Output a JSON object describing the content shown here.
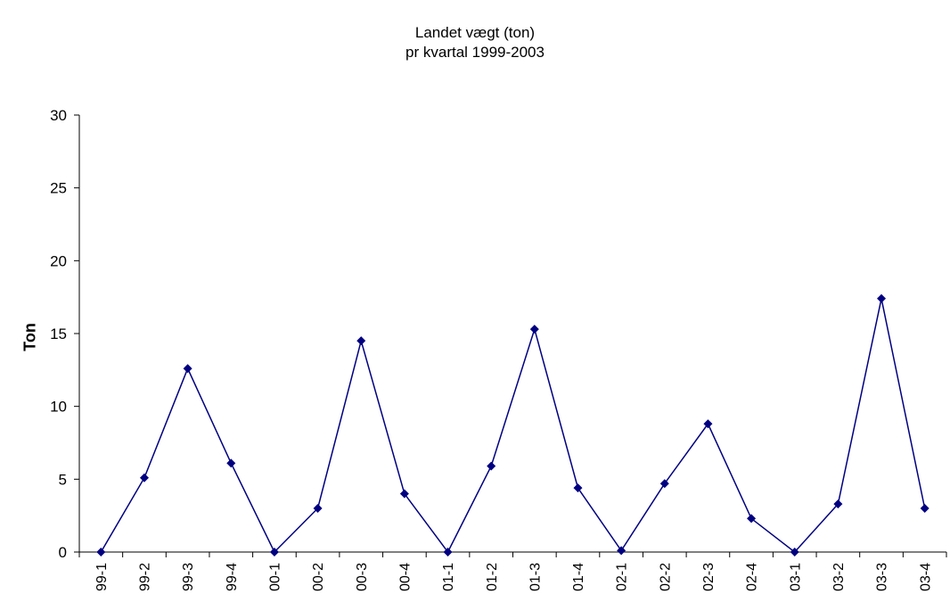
{
  "chart_data": {
    "type": "line",
    "title": "Landet vægt (ton)",
    "subtitle": "pr kvartal 1999-2003",
    "xlabel": "",
    "ylabel": "Ton",
    "ylim": [
      0,
      30
    ],
    "yticks": [
      0,
      5,
      10,
      15,
      20,
      25,
      30
    ],
    "categories": [
      "99-1",
      "99-2",
      "99-3",
      "99-4",
      "00-1",
      "00-2",
      "00-3",
      "00-4",
      "01-1",
      "01-2",
      "01-3",
      "01-4",
      "02-1",
      "02-2",
      "02-3",
      "02-4",
      "03-1",
      "03-2",
      "03-3",
      "03-4"
    ],
    "series": [
      {
        "values": [
          0,
          5.1,
          12.6,
          6.1,
          0,
          3.0,
          14.5,
          4.0,
          0,
          5.9,
          15.3,
          4.4,
          0.1,
          4.7,
          8.8,
          2.3,
          0,
          3.3,
          17.4,
          3.0
        ],
        "color": "#000080"
      }
    ],
    "grid": false,
    "legend": "none"
  }
}
